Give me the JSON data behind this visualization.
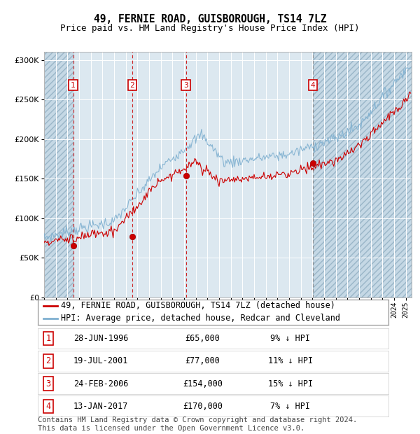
{
  "title": "49, FERNIE ROAD, GUISBOROUGH, TS14 7LZ",
  "subtitle": "Price paid vs. HM Land Registry's House Price Index (HPI)",
  "ylim": [
    0,
    310000
  ],
  "xlim_start": 1994.0,
  "xlim_end": 2025.5,
  "yticks": [
    0,
    50000,
    100000,
    150000,
    200000,
    250000,
    300000
  ],
  "ytick_labels": [
    "£0",
    "£50K",
    "£100K",
    "£150K",
    "£200K",
    "£250K",
    "£300K"
  ],
  "sale_dates": [
    1996.49,
    2001.55,
    2006.15,
    2017.04
  ],
  "sale_prices": [
    65000,
    77000,
    154000,
    170000
  ],
  "sale_labels": [
    "1",
    "2",
    "3",
    "4"
  ],
  "sale_date_strings": [
    "28-JUN-1996",
    "19-JUL-2001",
    "24-FEB-2006",
    "13-JAN-2017"
  ],
  "sale_price_strings": [
    "£65,000",
    "£77,000",
    "£154,000",
    "£170,000"
  ],
  "sale_hpi_strings": [
    "9% ↓ HPI",
    "11% ↓ HPI",
    "15% ↓ HPI",
    "7% ↓ HPI"
  ],
  "red_line_color": "#cc0000",
  "blue_line_color": "#7fb0d0",
  "background_color": "#dce8f0",
  "grid_color": "#ffffff",
  "legend_label_red": "49, FERNIE ROAD, GUISBOROUGH, TS14 7LZ (detached house)",
  "legend_label_blue": "HPI: Average price, detached house, Redcar and Cleveland",
  "footer_text": "Contains HM Land Registry data © Crown copyright and database right 2024.\nThis data is licensed under the Open Government Licence v3.0.",
  "title_fontsize": 10.5,
  "subtitle_fontsize": 9,
  "axis_fontsize": 8,
  "legend_fontsize": 8.5,
  "table_fontsize": 8.5,
  "footer_fontsize": 7.5
}
